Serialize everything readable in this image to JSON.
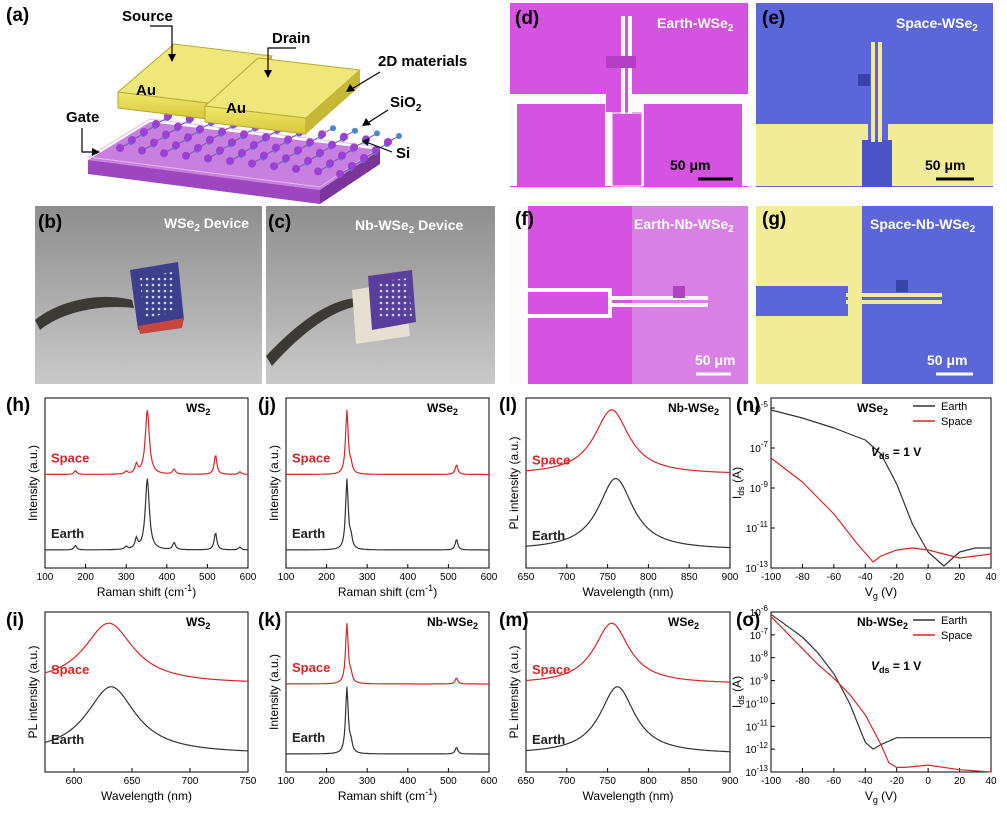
{
  "schematic": {
    "panel": "(a)",
    "source": "Source",
    "drain": "Drain",
    "materials": "2D materials",
    "sio2": "SiO",
    "sio2_sub": "2",
    "si": "Si",
    "gate": "Gate",
    "au1": "Au",
    "au2": "Au"
  },
  "photos": [
    {
      "panel": "(b)",
      "title": "WSe",
      "sub": "2",
      "suffix": " Device"
    },
    {
      "panel": "(c)",
      "title": "Nb-WSe",
      "sub": "2",
      "suffix": " Device"
    }
  ],
  "micrographs": [
    {
      "panel": "(d)",
      "title": "Earth-WSe",
      "sub": "2",
      "scale": "50 μm"
    },
    {
      "panel": "(e)",
      "title": "Space-WSe",
      "sub": "2",
      "scale": "50 μm"
    },
    {
      "panel": "(f)",
      "title": "Earth-Nb-WSe",
      "sub": "2",
      "scale": "50 μm"
    },
    {
      "panel": "(g)",
      "title": "Space-Nb-WSe",
      "sub": "2",
      "scale": "50 μm"
    }
  ],
  "colors": {
    "space": "#d62728",
    "earth": "#333333",
    "magenta": "#d651e0",
    "gold": "#f2ee95",
    "blue": "#5b67d8"
  },
  "chart_data": [
    {
      "panel": "(h)",
      "type": "line",
      "title": "WS",
      "title_sub": "2",
      "xlabel": "Raman shift (cm",
      "xlabel_sup": "-1",
      "xlabel_end": ")",
      "ylabel": "Intensity (a.u.)",
      "xlim": [
        100,
        600
      ],
      "xticks": [
        100,
        200,
        300,
        400,
        500,
        600
      ],
      "series": [
        {
          "name": "Space",
          "peaks": [
            [
              175,
              6
            ],
            [
              300,
              4
            ],
            [
              325,
              14
            ],
            [
              352,
              100
            ],
            [
              418,
              8
            ],
            [
              520,
              30
            ],
            [
              580,
              4
            ]
          ]
        },
        {
          "name": "Earth",
          "peaks": [
            [
              175,
              6
            ],
            [
              300,
              4
            ],
            [
              325,
              14
            ],
            [
              352,
              100
            ],
            [
              418,
              10
            ],
            [
              520,
              24
            ],
            [
              580,
              4
            ]
          ]
        }
      ]
    },
    {
      "panel": "(j)",
      "type": "line",
      "title": "WSe",
      "title_sub": "2",
      "xlabel": "Raman shift (cm",
      "xlabel_sup": "-1",
      "xlabel_end": ")",
      "ylabel": "Intensity (a.u.)",
      "xlim": [
        100,
        600
      ],
      "xticks": [
        100,
        200,
        300,
        400,
        500,
        600
      ],
      "series": [
        {
          "name": "Space",
          "peaks": [
            [
              250,
              100
            ],
            [
              260,
              12
            ],
            [
              520,
              15
            ]
          ]
        },
        {
          "name": "Earth",
          "peaks": [
            [
              250,
              100
            ],
            [
              260,
              14
            ],
            [
              520,
              15
            ]
          ]
        }
      ]
    },
    {
      "panel": "(l)",
      "type": "line",
      "title": "Nb-WSe",
      "title_sub": "2",
      "xlabel": "Wavelength (nm)",
      "ylabel": "PL intensity (a.u.)",
      "xlim": [
        650,
        900
      ],
      "xticks": [
        650,
        700,
        750,
        800,
        850,
        900
      ],
      "series": [
        {
          "name": "Space",
          "center": 755,
          "height": 100
        },
        {
          "name": "Earth",
          "center": 760,
          "height": 100
        }
      ]
    },
    {
      "panel": "(n)",
      "type": "line",
      "title": "WSe",
      "title_sub": "2",
      "xlabel": "V",
      "xlabel_sub": "g",
      "xlabel_end": " (V)",
      "ylabel": "I",
      "ylabel_sub": "ds",
      "ylabel_end": " (A)",
      "log_y": true,
      "xlim": [
        -100,
        40
      ],
      "xticks": [
        -100,
        -80,
        -60,
        -40,
        -20,
        0,
        20,
        40
      ],
      "ylim_exp": [
        -13,
        -4.5
      ],
      "ytick_exps": [
        -13,
        -11,
        -9,
        -7,
        -5
      ],
      "vds_label": "V",
      "vds_sub": "ds",
      "vds_value": " = 1 V",
      "legend": [
        "Earth",
        "Space"
      ],
      "series": [
        {
          "name": "Earth",
          "x": [
            -100,
            -80,
            -60,
            -40,
            -30,
            -20,
            -10,
            0,
            10,
            20,
            30,
            40
          ],
          "log10_y": [
            -5.1,
            -5.5,
            -6.0,
            -6.6,
            -7.3,
            -8.8,
            -10.8,
            -12.2,
            -12.9,
            -12.2,
            -12.0,
            -12.0
          ]
        },
        {
          "name": "Space",
          "x": [
            -100,
            -80,
            -60,
            -45,
            -35,
            -30,
            -20,
            -10,
            0,
            10,
            20,
            40
          ],
          "log10_y": [
            -7.5,
            -8.7,
            -10.3,
            -11.8,
            -12.7,
            -12.4,
            -12.1,
            -12.0,
            -12.1,
            -12.3,
            -12.5,
            -12.3
          ]
        }
      ]
    },
    {
      "panel": "(i)",
      "type": "line",
      "title": "WS",
      "title_sub": "2",
      "xlabel": "Wavelength (nm)",
      "ylabel": "PL intensity (a.u.)",
      "xlim": [
        575,
        750
      ],
      "xticks": [
        600,
        650,
        700,
        750
      ],
      "series": [
        {
          "name": "Space",
          "center": 630,
          "height": 100
        },
        {
          "name": "Earth",
          "center": 632,
          "height": 100
        }
      ]
    },
    {
      "panel": "(k)",
      "type": "line",
      "title": "Nb-WSe",
      "title_sub": "2",
      "xlabel": "Raman shift (cm",
      "xlabel_sup": "-1",
      "xlabel_end": ")",
      "ylabel": "Intensity (a.u.)",
      "xlim": [
        100,
        600
      ],
      "xticks": [
        100,
        200,
        300,
        400,
        500,
        600
      ],
      "series": [
        {
          "name": "Space",
          "peaks": [
            [
              250,
              100
            ],
            [
              260,
              12
            ],
            [
              520,
              10
            ]
          ]
        },
        {
          "name": "Earth",
          "peaks": [
            [
              250,
              100
            ],
            [
              260,
              14
            ],
            [
              520,
              10
            ]
          ]
        }
      ]
    },
    {
      "panel": "(m)",
      "type": "line",
      "title": "WSe",
      "title_sub": "2",
      "xlabel": "Wavelength (nm)",
      "ylabel": "PL intensity (a.u.)",
      "xlim": [
        650,
        900
      ],
      "xticks": [
        650,
        700,
        750,
        800,
        850,
        900
      ],
      "series": [
        {
          "name": "Space",
          "center": 755,
          "height": 100
        },
        {
          "name": "Earth",
          "center": 762,
          "height": 100
        }
      ]
    },
    {
      "panel": "(o)",
      "type": "line",
      "title": "Nb-WSe",
      "title_sub": "2",
      "xlabel": "V",
      "xlabel_sub": "g",
      "xlabel_end": " (V)",
      "ylabel": "I",
      "ylabel_sub": "ds",
      "ylabel_end": " (A)",
      "log_y": true,
      "xlim": [
        -100,
        40
      ],
      "xticks": [
        -100,
        -80,
        -60,
        -40,
        -20,
        0,
        20,
        40
      ],
      "ylim_exp": [
        -13,
        -6
      ],
      "ytick_exps": [
        -13,
        -12,
        -11,
        -10,
        -9,
        -8,
        -7,
        -6
      ],
      "vds_label": "V",
      "vds_sub": "ds",
      "vds_value": " = 1 V",
      "legend": [
        "Earth",
        "Space"
      ],
      "series": [
        {
          "name": "Earth",
          "x": [
            -100,
            -90,
            -80,
            -70,
            -60,
            -50,
            -40,
            -35,
            -30,
            -20,
            0,
            20,
            40
          ],
          "log10_y": [
            -6.1,
            -6.6,
            -7.1,
            -7.8,
            -8.7,
            -10.0,
            -11.7,
            -12.0,
            -11.8,
            -11.5,
            -11.5,
            -11.5,
            -11.5
          ]
        },
        {
          "name": "Space",
          "x": [
            -100,
            -90,
            -80,
            -70,
            -60,
            -50,
            -40,
            -30,
            -25,
            -20,
            -15,
            0,
            20,
            40
          ],
          "log10_y": [
            -6.2,
            -6.9,
            -7.6,
            -8.3,
            -8.9,
            -9.6,
            -10.5,
            -11.8,
            -12.6,
            -12.8,
            -12.8,
            -12.7,
            -12.9,
            -13.0
          ]
        }
      ]
    }
  ]
}
